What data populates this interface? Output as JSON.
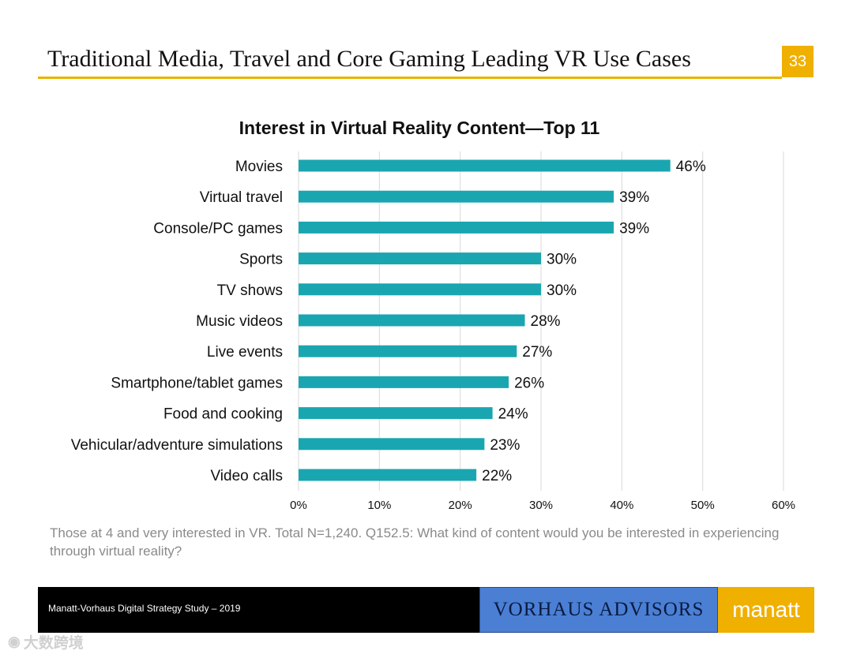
{
  "slide": {
    "title": "Traditional Media, Travel and Core Gaming Leading VR Use Cases",
    "page_number": "33"
  },
  "chart_data": {
    "type": "bar",
    "orientation": "horizontal",
    "title": "Interest in Virtual Reality Content—Top 11",
    "categories": [
      "Movies",
      "Virtual travel",
      "Console/PC games",
      "Sports",
      "TV shows",
      "Music videos",
      "Live events",
      "Smartphone/tablet games",
      "Food and cooking",
      "Vehicular/adventure simulations",
      "Video calls"
    ],
    "values": [
      46,
      39,
      39,
      30,
      30,
      28,
      27,
      26,
      24,
      23,
      22
    ],
    "value_labels": [
      "46%",
      "39%",
      "39%",
      "30%",
      "30%",
      "28%",
      "27%",
      "26%",
      "24%",
      "23%",
      "22%"
    ],
    "xlim": [
      0,
      60
    ],
    "xticks": [
      0,
      10,
      20,
      30,
      40,
      50,
      60
    ],
    "xtick_labels": [
      "0%",
      "10%",
      "20%",
      "30%",
      "40%",
      "50%",
      "60%"
    ],
    "xlabel": "",
    "ylabel": "",
    "grid": true,
    "bar_color": "#1aa6b0"
  },
  "footnote": "Those at 4 and very interested in VR. Total N=1,240. Q152.5: What kind of content would you be interested in experiencing through virtual reality?",
  "footer": {
    "study": "Manatt-Vorhaus Digital Strategy Study – 2019",
    "vorhaus": "VORHAUS ADVISORS",
    "manatt": "manatt"
  },
  "watermark": {
    "icon": "weibo-icon",
    "text": "大数跨境"
  }
}
